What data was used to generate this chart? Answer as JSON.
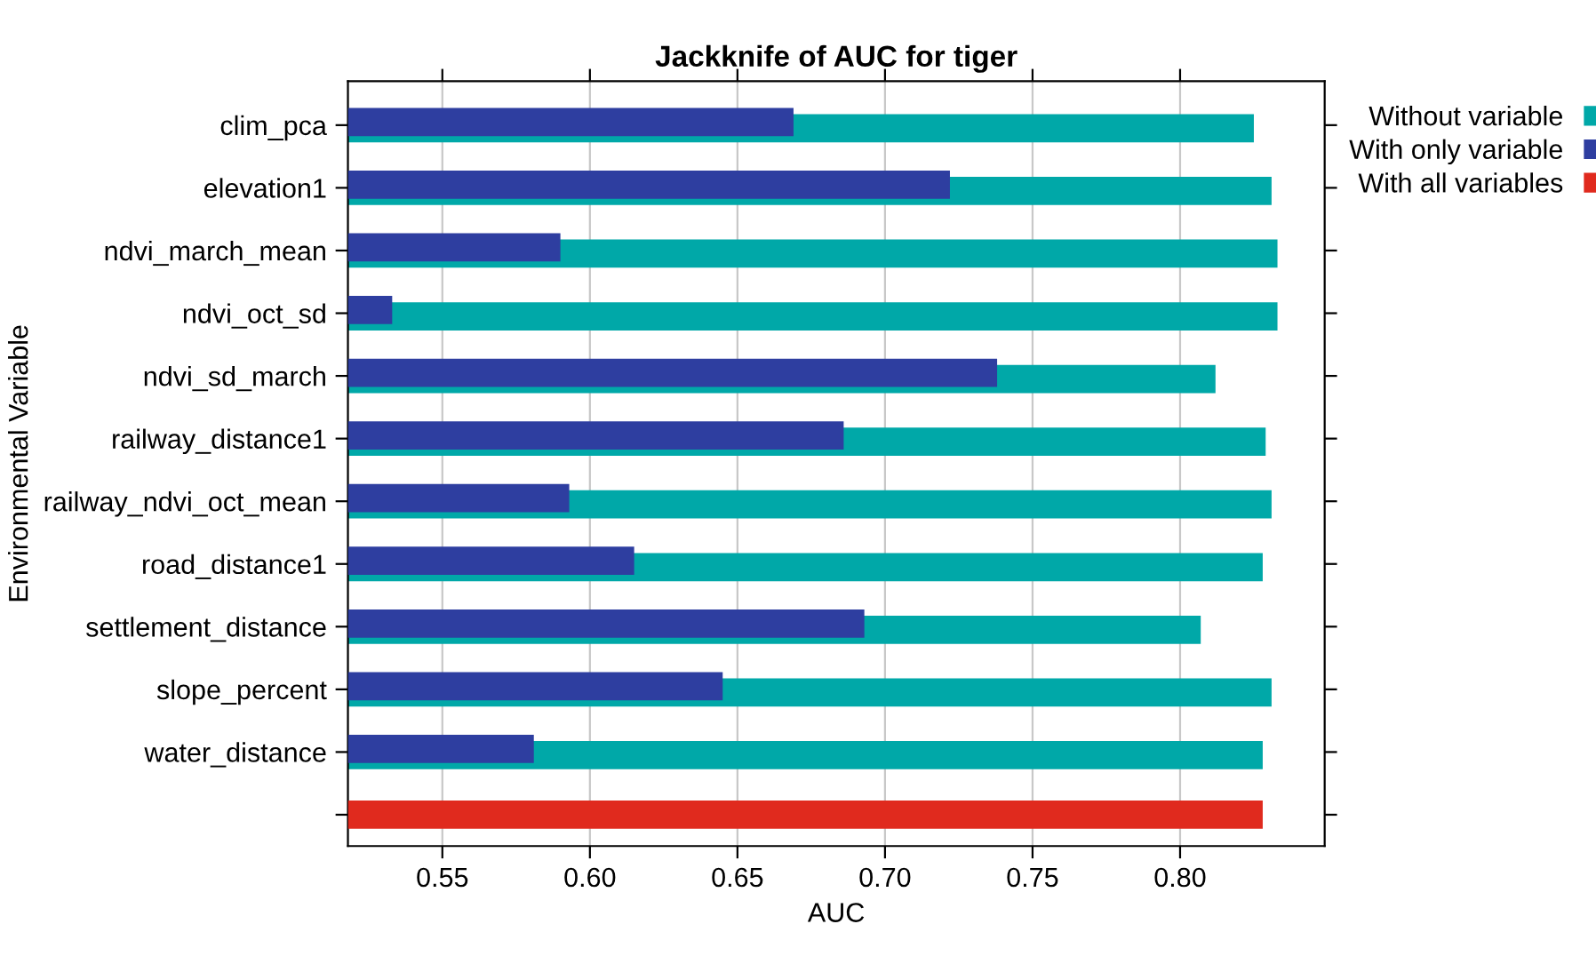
{
  "chart_data": {
    "type": "bar",
    "orientation": "horizontal",
    "title": "Jackknife of AUC for tiger",
    "xlabel": "AUC",
    "ylabel": "Environmental Variable",
    "categories": [
      "clim_pca",
      "elevation1",
      "ndvi_march_mean",
      "ndvi_oct_sd",
      "ndvi_sd_march",
      "railway_distance1",
      "railway_ndvi_oct_mean",
      "road_distance1",
      "settlement_distance",
      "slope_percent",
      "water_distance",
      null
    ],
    "series": [
      {
        "name": "Without variable",
        "color": "#00a8a8",
        "values": [
          0.825,
          0.831,
          0.833,
          0.833,
          0.812,
          0.829,
          0.831,
          0.828,
          0.807,
          0.831,
          0.828,
          null
        ]
      },
      {
        "name": "With only variable",
        "color": "#2e3ea0",
        "values": [
          0.669,
          0.722,
          0.59,
          0.533,
          0.738,
          0.686,
          0.593,
          0.615,
          0.693,
          0.645,
          0.581,
          null
        ]
      },
      {
        "name": "With all variables",
        "color": "#e02a1e",
        "values": [
          null,
          null,
          null,
          null,
          null,
          null,
          null,
          null,
          null,
          null,
          null,
          0.828
        ]
      }
    ],
    "xlim": [
      0.518,
      0.849
    ],
    "xticks": [
      0.55,
      {
        "value": 0.6,
        "label": "0.60"
      },
      0.65,
      {
        "value": 0.7,
        "label": "0.70"
      },
      0.75,
      {
        "value": 0.8,
        "label": "0.80"
      }
    ],
    "grid": "x",
    "legend": "top right"
  }
}
